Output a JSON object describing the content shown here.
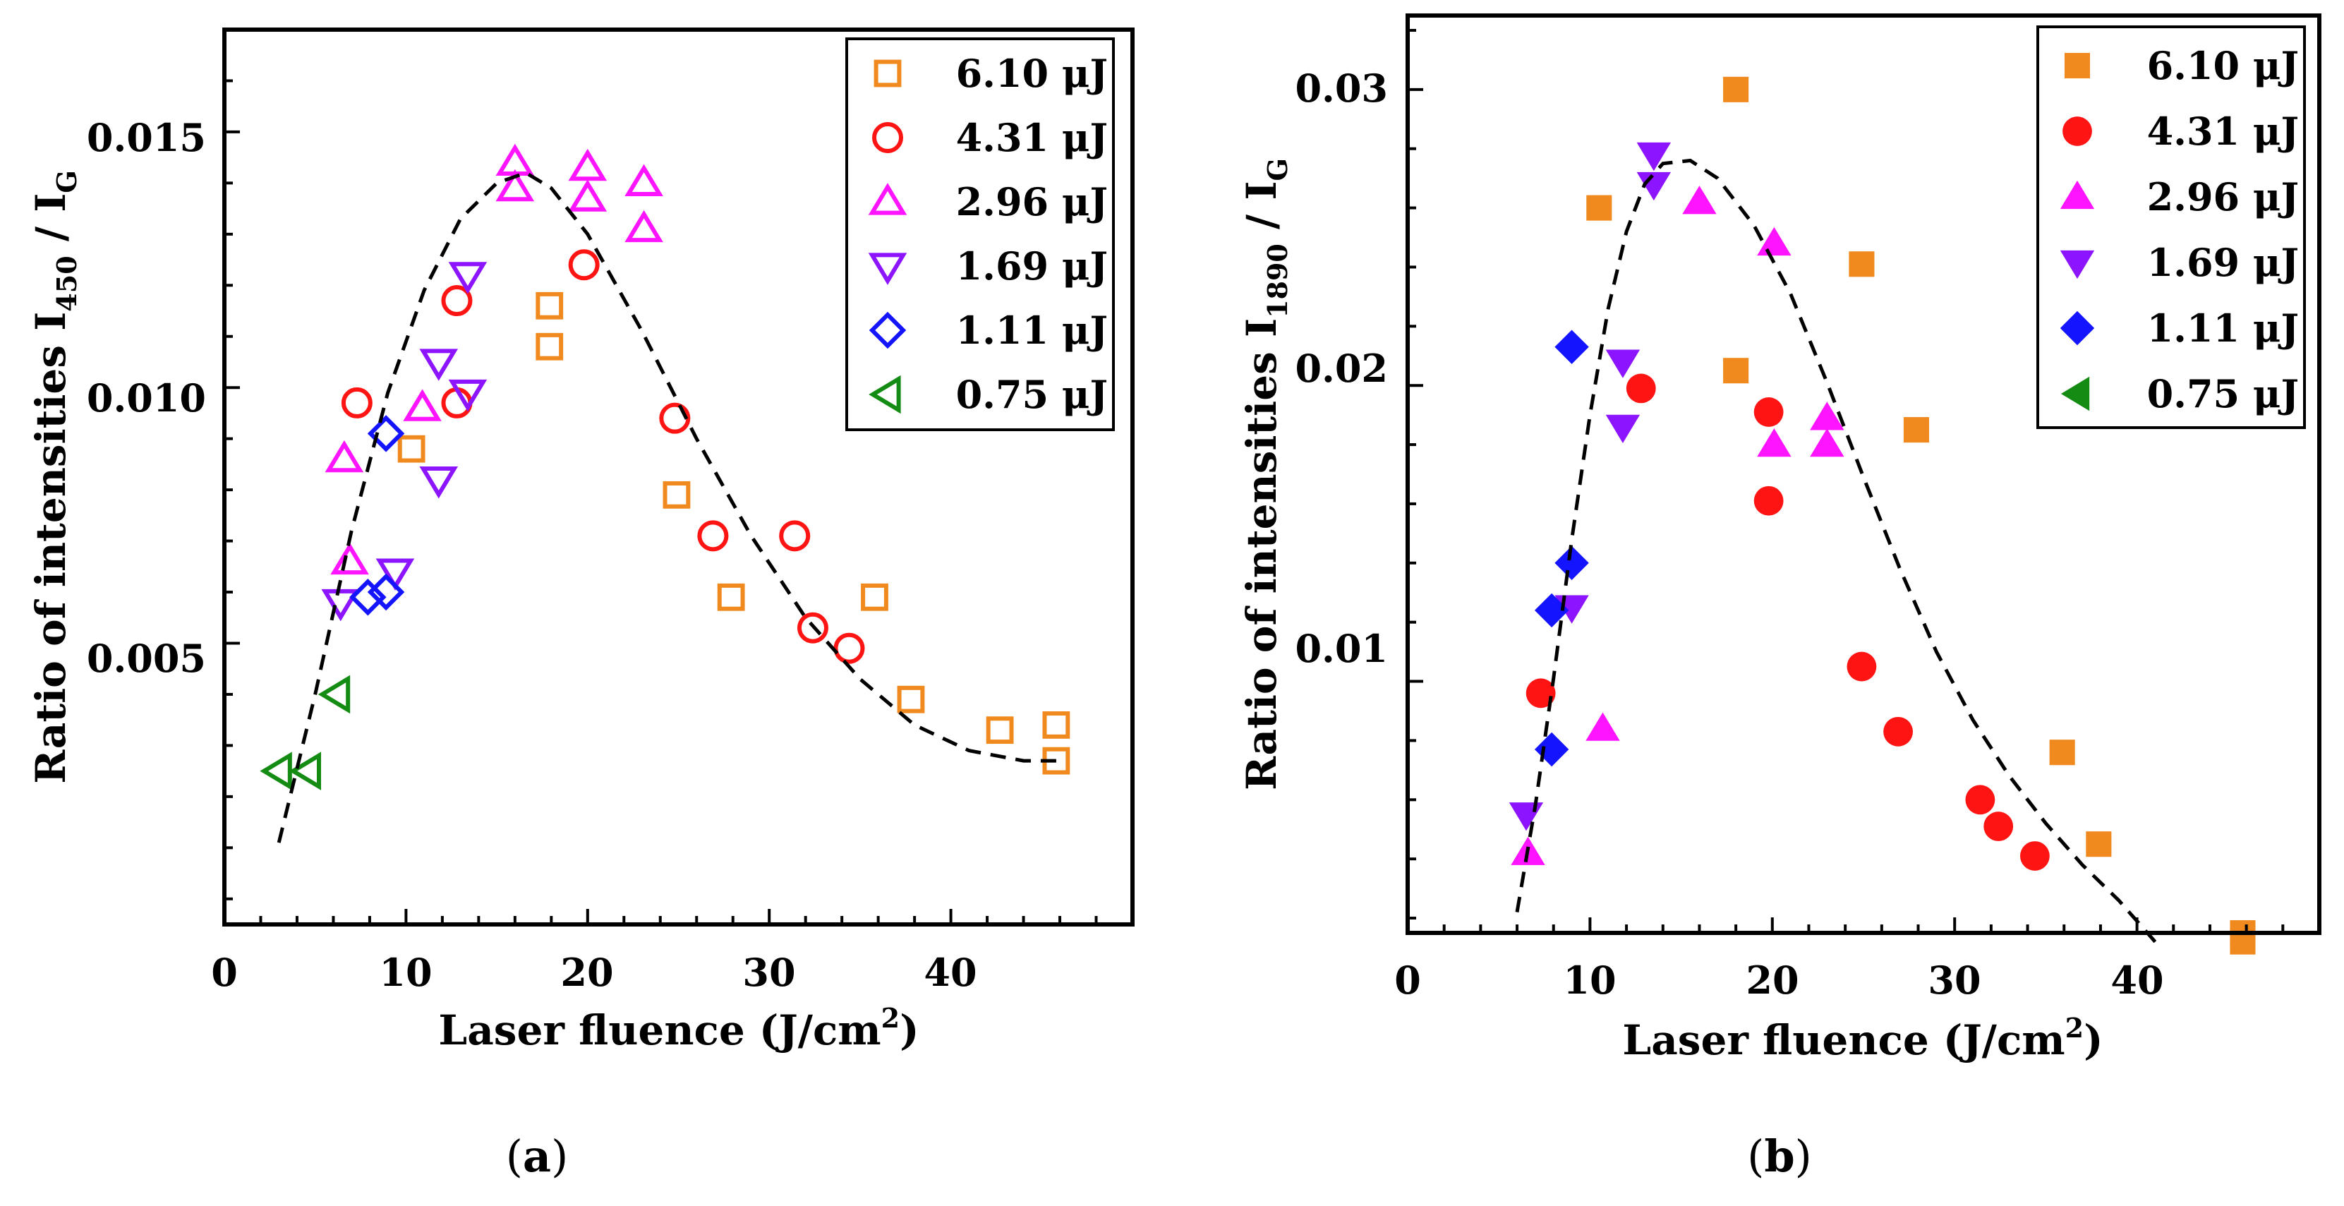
{
  "colors": {
    "6.10": "#f08a1e",
    "4.31": "#ff1414",
    "2.96": "#ff14ff",
    "1.69": "#8c14ff",
    "1.11": "#1414ff",
    "0.75": "#148c14",
    "fit": "#000000"
  },
  "legend_entries": [
    "6.10 μJ",
    "4.31 μJ",
    "2.96 μJ",
    "1.69 μJ",
    "1.11 μJ",
    "0.75 μJ"
  ],
  "captions": {
    "a": "a",
    "b": "b"
  },
  "chart_data": [
    {
      "id": "a",
      "type": "scatter",
      "marker_fill": "open",
      "xlabel": "Laser fluence (J/cm",
      "xlabel_sup": "2",
      "xlabel_end": ")",
      "ylabel": "Ratio of intensities   I",
      "ylabel_sub": "450",
      "ylabel_mid": " / I",
      "ylabel_sub2": "G",
      "xlim": [
        0,
        50
      ],
      "ylim": [
        -0.0005,
        0.017
      ],
      "xticks": [
        0,
        10,
        20,
        30,
        40
      ],
      "xtick_labels": [
        "0",
        "10",
        "20",
        "30",
        "40"
      ],
      "yticks": [
        0.005,
        0.01,
        0.015
      ],
      "ytick_labels": [
        "0.005",
        "0.010",
        "0.015"
      ],
      "legend_position": "top-right",
      "series": [
        {
          "name": "6.10 μJ",
          "marker": "square",
          "color_key": "6.10",
          "points": [
            [
              10.3,
              0.0088
            ],
            [
              17.9,
              0.0116
            ],
            [
              17.9,
              0.0108
            ],
            [
              24.9,
              0.0079
            ],
            [
              27.9,
              0.0059
            ],
            [
              35.8,
              0.0059
            ],
            [
              37.8,
              0.0039
            ],
            [
              42.7,
              0.0033
            ],
            [
              45.8,
              0.0034
            ],
            [
              45.8,
              0.0027
            ]
          ]
        },
        {
          "name": "4.31 μJ",
          "marker": "circle",
          "color_key": "4.31",
          "points": [
            [
              7.3,
              0.0097
            ],
            [
              12.8,
              0.0117
            ],
            [
              12.8,
              0.0097
            ],
            [
              19.8,
              0.0124
            ],
            [
              24.8,
              0.0094
            ],
            [
              26.9,
              0.0071
            ],
            [
              31.4,
              0.0071
            ],
            [
              32.4,
              0.0053
            ],
            [
              34.4,
              0.0049
            ]
          ]
        },
        {
          "name": "2.96 μJ",
          "marker": "triangle-up",
          "color_key": "2.96",
          "points": [
            [
              6.6,
              0.0086
            ],
            [
              6.9,
              0.0066
            ],
            [
              10.9,
              0.0096
            ],
            [
              16.0,
              0.0144
            ],
            [
              16.0,
              0.0139
            ],
            [
              20.0,
              0.0143
            ],
            [
              20.0,
              0.0137
            ],
            [
              23.1,
              0.014
            ],
            [
              23.1,
              0.0131
            ]
          ]
        },
        {
          "name": "1.69 μJ",
          "marker": "triangle-down",
          "color_key": "1.69",
          "points": [
            [
              6.4,
              0.0058
            ],
            [
              9.4,
              0.0064
            ],
            [
              11.8,
              0.0105
            ],
            [
              11.8,
              0.0082
            ],
            [
              13.4,
              0.0122
            ],
            [
              13.4,
              0.0099
            ]
          ]
        },
        {
          "name": "1.11 μJ",
          "marker": "diamond",
          "color_key": "1.11",
          "points": [
            [
              7.9,
              0.0059
            ],
            [
              8.9,
              0.006
            ],
            [
              8.9,
              0.0091
            ]
          ]
        },
        {
          "name": "0.75 μJ",
          "marker": "triangle-left",
          "color_key": "0.75",
          "points": [
            [
              3.0,
              0.0025
            ],
            [
              4.6,
              0.0025
            ],
            [
              6.2,
              0.004
            ]
          ]
        }
      ],
      "fit_curve": [
        [
          3.0,
          0.0011
        ],
        [
          5.0,
          0.004
        ],
        [
          7.0,
          0.0072
        ],
        [
          9.0,
          0.0099
        ],
        [
          11.0,
          0.0119
        ],
        [
          13.0,
          0.0133
        ],
        [
          15.0,
          0.014
        ],
        [
          16.6,
          0.0142
        ],
        [
          18.0,
          0.0139
        ],
        [
          20.0,
          0.013
        ],
        [
          23.0,
          0.0111
        ],
        [
          26.0,
          0.009
        ],
        [
          29.0,
          0.0071
        ],
        [
          32.0,
          0.0055
        ],
        [
          35.0,
          0.0043
        ],
        [
          38.0,
          0.0034
        ],
        [
          41.0,
          0.0029
        ],
        [
          44.0,
          0.0027
        ],
        [
          46.0,
          0.0027
        ]
      ]
    },
    {
      "id": "b",
      "type": "scatter",
      "marker_fill": "filled",
      "xlabel": "Laser fluence (J/cm",
      "xlabel_sup": "2",
      "xlabel_end": ")",
      "ylabel": "Ratio of intensities   I",
      "ylabel_sub": "1890",
      "ylabel_mid": " / I",
      "ylabel_sub2": "G",
      "xlim": [
        0,
        50
      ],
      "ylim": [
        0.0015,
        0.0325
      ],
      "xticks": [
        0,
        10,
        20,
        30,
        40
      ],
      "xtick_labels": [
        "0",
        "10",
        "20",
        "30",
        "40"
      ],
      "yticks": [
        0.01,
        0.02,
        0.03
      ],
      "ytick_labels": [
        "0.01",
        "0.02",
        "0.03"
      ],
      "legend_position": "top-right",
      "series": [
        {
          "name": "6.10 μJ",
          "marker": "square",
          "color_key": "6.10",
          "points": [
            [
              10.5,
              0.026
            ],
            [
              18.0,
              0.03
            ],
            [
              18.0,
              0.0205
            ],
            [
              24.9,
              0.0241
            ],
            [
              27.9,
              0.0185
            ],
            [
              35.9,
              0.0076
            ],
            [
              37.9,
              0.0045
            ],
            [
              45.8,
              0.0015
            ],
            [
              45.8,
              0.0012
            ]
          ]
        },
        {
          "name": "4.31 μJ",
          "marker": "circle",
          "color_key": "4.31",
          "points": [
            [
              7.3,
              0.0096
            ],
            [
              12.8,
              0.0199
            ],
            [
              19.8,
              0.0191
            ],
            [
              19.8,
              0.0161
            ],
            [
              24.9,
              0.0105
            ],
            [
              26.9,
              0.0083
            ],
            [
              31.4,
              0.006
            ],
            [
              32.4,
              0.0051
            ],
            [
              34.4,
              0.0041
            ]
          ]
        },
        {
          "name": "2.96 μJ",
          "marker": "triangle-up",
          "color_key": "2.96",
          "points": [
            [
              6.6,
              0.0042
            ],
            [
              10.7,
              0.0084
            ],
            [
              16.0,
              0.0262
            ],
            [
              20.1,
              0.0248
            ],
            [
              20.1,
              0.018
            ],
            [
              23.0,
              0.0189
            ],
            [
              23.0,
              0.018
            ]
          ]
        },
        {
          "name": "1.69 μJ",
          "marker": "triangle-down",
          "color_key": "1.69",
          "points": [
            [
              6.5,
              0.0055
            ],
            [
              9.0,
              0.0125
            ],
            [
              11.8,
              0.0208
            ],
            [
              11.8,
              0.0186
            ],
            [
              13.5,
              0.0278
            ],
            [
              13.5,
              0.0268
            ]
          ]
        },
        {
          "name": "1.11 μJ",
          "marker": "diamond",
          "color_key": "1.11",
          "points": [
            [
              7.9,
              0.0077
            ],
            [
              7.9,
              0.0124
            ],
            [
              9.0,
              0.014
            ],
            [
              9.0,
              0.0213
            ]
          ]
        },
        {
          "name": "0.75 μJ",
          "marker": "triangle-left",
          "color_key": "0.75",
          "points": []
        }
      ],
      "fit_curve": [
        [
          6.0,
          0.0022
        ],
        [
          7.0,
          0.0058
        ],
        [
          8.0,
          0.0101
        ],
        [
          9.0,
          0.0148
        ],
        [
          10.0,
          0.019
        ],
        [
          11.0,
          0.0226
        ],
        [
          12.0,
          0.0252
        ],
        [
          13.0,
          0.0268
        ],
        [
          14.0,
          0.0275
        ],
        [
          15.5,
          0.0276
        ],
        [
          17.0,
          0.027
        ],
        [
          19.0,
          0.0254
        ],
        [
          21.0,
          0.0231
        ],
        [
          23.0,
          0.0201
        ],
        [
          25.0,
          0.0169
        ],
        [
          27.0,
          0.0138
        ],
        [
          29.0,
          0.011
        ],
        [
          31.0,
          0.0087
        ],
        [
          33.0,
          0.0068
        ],
        [
          35.0,
          0.0052
        ],
        [
          37.0,
          0.0038
        ],
        [
          39.0,
          0.0026
        ],
        [
          41.0,
          0.0012
        ]
      ]
    }
  ]
}
